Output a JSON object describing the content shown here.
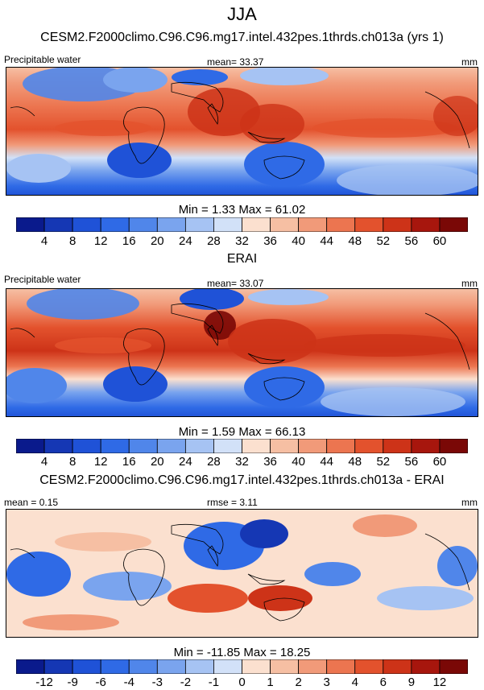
{
  "title": "JJA",
  "panels": [
    {
      "id": "model",
      "title": "CESM2.F2000climo.C96.C96.mg17.intel.432pes.1thrds.ch013a (yrs 1)",
      "left_label": "Precipitable water",
      "center_label": "mean=  33.37",
      "right_label": "mm",
      "minmax": "Min =   1.33 Max =  61.02"
    },
    {
      "id": "obs",
      "title": "ERAI",
      "left_label": "Precipitable water",
      "center_label": "mean=  33.07",
      "right_label": "mm",
      "minmax": "Min =   1.59 Max =  66.13"
    },
    {
      "id": "diff",
      "title": "CESM2.F2000climo.C96.C96.mg17.intel.432pes.1thrds.ch013a - ERAI",
      "left_label": "mean =   0.15",
      "center_label": "rmse =   3.11",
      "right_label": "mm",
      "minmax": "Min = -11.85 Max =  18.25"
    }
  ],
  "colorbars": {
    "abs_ticks": [
      "4",
      "8",
      "12",
      "16",
      "20",
      "24",
      "28",
      "32",
      "36",
      "40",
      "44",
      "48",
      "52",
      "56",
      "60"
    ],
    "diff_ticks": [
      "-12",
      "-9",
      "-6",
      "-4",
      "-3",
      "-2",
      "-1",
      "0",
      "1",
      "2",
      "3",
      "4",
      "6",
      "9",
      "12"
    ],
    "colors": [
      "#0a1a8c",
      "#1537b4",
      "#1f52d7",
      "#2f6ae6",
      "#5086ea",
      "#7aa4ee",
      "#a6c3f3",
      "#d2e1f8",
      "#fbe0cf",
      "#f6bfa3",
      "#f19a79",
      "#ec7550",
      "#e3522d",
      "#cd3318",
      "#a7160d",
      "#7a0806"
    ]
  },
  "chart_data": [
    {
      "type": "heatmap",
      "title": "CESM2.F2000climo.C96.C96.mg17.intel.432pes.1thrds.ch013a (yrs 1)",
      "variable": "Precipitable water",
      "units": "mm",
      "mean": 33.37,
      "min": 1.33,
      "max": 61.02,
      "contour_levels": [
        4,
        8,
        12,
        16,
        20,
        24,
        28,
        32,
        36,
        40,
        44,
        48,
        52,
        56,
        60
      ]
    },
    {
      "type": "heatmap",
      "title": "ERAI",
      "variable": "Precipitable water",
      "units": "mm",
      "mean": 33.07,
      "min": 1.59,
      "max": 66.13,
      "contour_levels": [
        4,
        8,
        12,
        16,
        20,
        24,
        28,
        32,
        36,
        40,
        44,
        48,
        52,
        56,
        60
      ]
    },
    {
      "type": "heatmap",
      "title": "CESM2.F2000climo.C96.C96.mg17.intel.432pes.1thrds.ch013a - ERAI",
      "units": "mm",
      "mean": 0.15,
      "rmse": 3.11,
      "min": -11.85,
      "max": 18.25,
      "contour_levels": [
        -12,
        -9,
        -6,
        -4,
        -3,
        -2,
        -1,
        0,
        1,
        2,
        3,
        4,
        6,
        9,
        12
      ]
    }
  ]
}
